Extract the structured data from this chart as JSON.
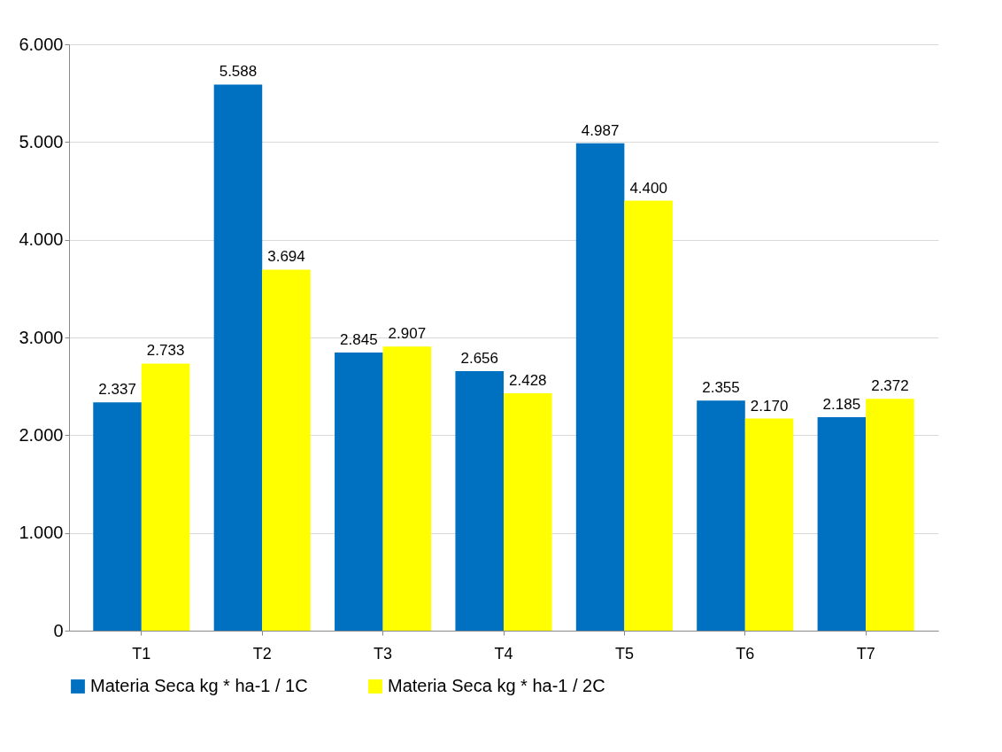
{
  "chart_data": {
    "type": "bar",
    "categories": [
      "T1",
      "T2",
      "T3",
      "T4",
      "T5",
      "T6",
      "T7"
    ],
    "series": [
      {
        "name": "Materia Seca kg * ha-1  / 1C",
        "color": "#0070c0",
        "values": [
          2337,
          5588,
          2845,
          2656,
          4987,
          2355,
          2185
        ],
        "value_labels": [
          "2.337",
          "5.588",
          "2.845",
          "2.656",
          "4.987",
          "2.355",
          "2.185"
        ]
      },
      {
        "name": "Materia Seca kg * ha-1  / 2C",
        "color": "#ffff00",
        "values": [
          2733,
          3694,
          2907,
          2428,
          4400,
          2170,
          2372
        ],
        "value_labels": [
          "2.733",
          "3.694",
          "2.907",
          "2.428",
          "4.400",
          "2.170",
          "2.372"
        ]
      }
    ],
    "ylim": [
      0,
      6000
    ],
    "yticks": [
      0,
      {
        "value": 1000,
        "label": "1.000"
      },
      {
        "value": 2000,
        "label": "2.000"
      },
      {
        "value": 3000,
        "label": "3.000"
      },
      {
        "value": 4000,
        "label": "4.000"
      },
      {
        "value": 5000,
        "label": "5.000"
      },
      {
        "value": 6000,
        "label": "6.000"
      }
    ],
    "grid": "y",
    "legend": "bottom"
  }
}
